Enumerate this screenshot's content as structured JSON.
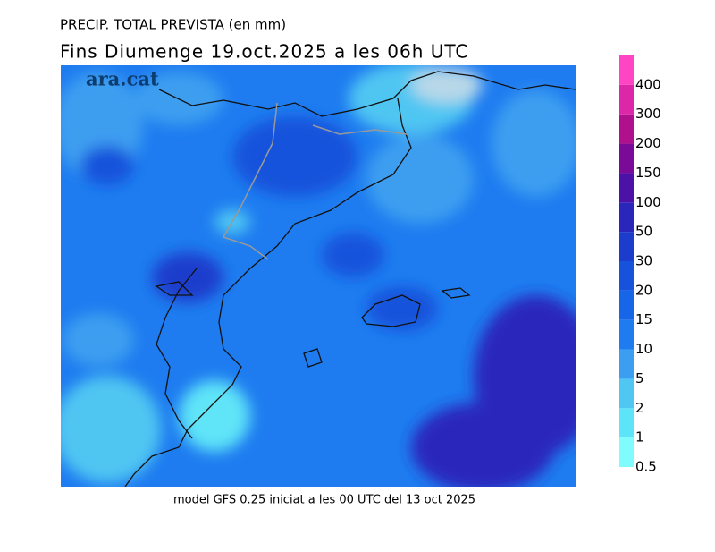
{
  "header": {
    "title": "PRECIP. TOTAL PREVISTA (en mm)",
    "subtitle": "Fins Diumenge 19.oct.2025 a les 06h UTC",
    "logo": "ara.cat"
  },
  "legend": {
    "levels": [
      0.5,
      1,
      2,
      5,
      10,
      15,
      20,
      30,
      50,
      100,
      150,
      200,
      300,
      400
    ],
    "colors": [
      "#80fcff",
      "#5ee4f8",
      "#50c6f2",
      "#3c9ef0",
      "#1e7cf0",
      "#1866e8",
      "#1652dc",
      "#1c3ccc",
      "#2a26bc",
      "#4c12a8",
      "#7a0a98",
      "#b0108c",
      "#dc28a8",
      "#ff44c4"
    ]
  },
  "footer": "model GFS 0.25 iniciat a les 00 UTC del 13 oct 2025"
}
